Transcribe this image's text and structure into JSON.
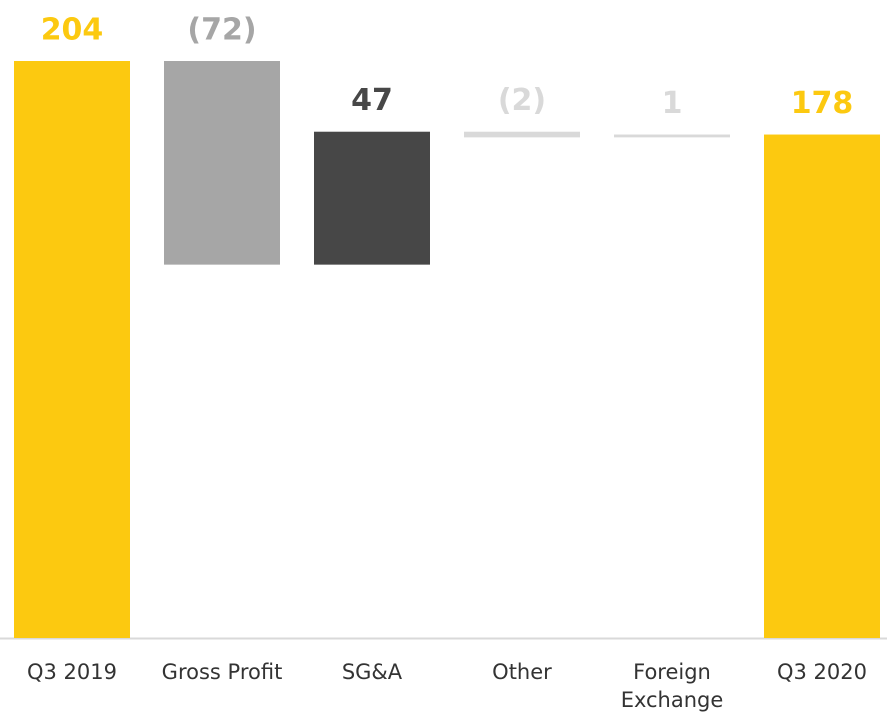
{
  "chart_data": {
    "type": "waterfall",
    "categories": [
      "Q3 2019",
      "Gross Profit",
      "SG&A",
      "Other",
      "Foreign Exchange",
      "Q3 2020"
    ],
    "values": [
      204,
      -72,
      47,
      -2,
      1,
      178
    ],
    "value_labels": [
      "204",
      "(72)",
      "47",
      "(2)",
      "1",
      "178"
    ],
    "colors": [
      "#fcc910",
      "#a6a6a6",
      "#474747",
      "#d9d9d9",
      "#d9d9d9",
      "#fcc910"
    ],
    "ylim": [
      0,
      204
    ]
  }
}
